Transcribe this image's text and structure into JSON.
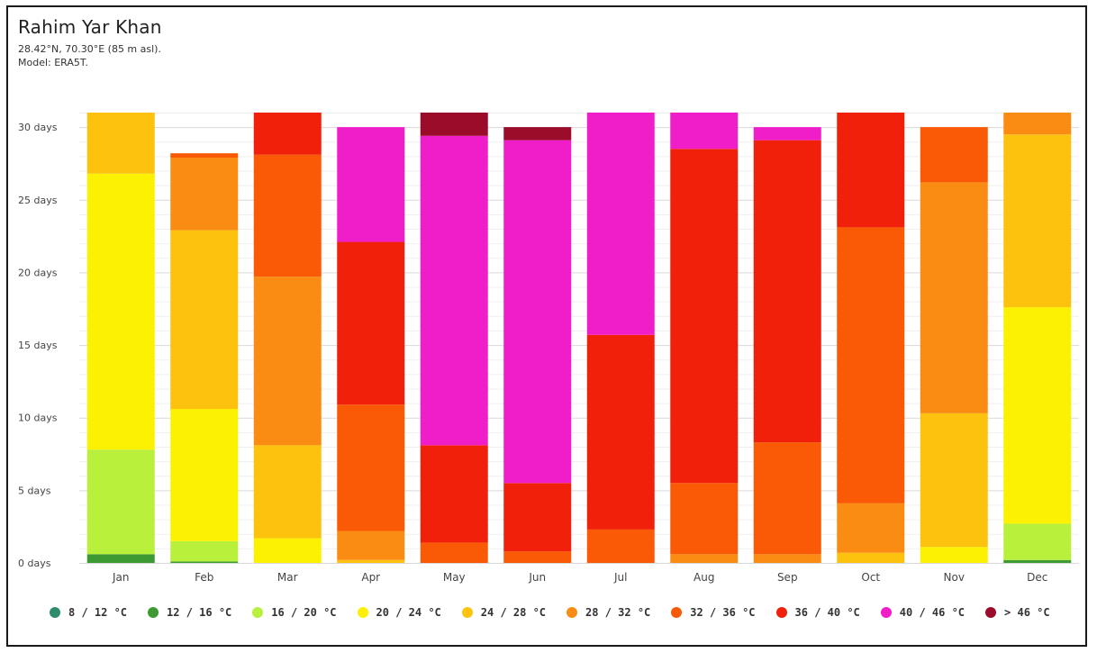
{
  "header": {
    "title": "Rahim Yar Khan",
    "coords": "28.42°N, 70.30°E (85 m asl).",
    "model": "Model: ERA5T."
  },
  "chart_data": {
    "type": "bar",
    "stacked": true,
    "categories": [
      "Jan",
      "Feb",
      "Mar",
      "Apr",
      "May",
      "Jun",
      "Jul",
      "Aug",
      "Sep",
      "Oct",
      "Nov",
      "Dec"
    ],
    "ylim": [
      0,
      31
    ],
    "yticks": [
      0,
      5,
      10,
      15,
      20,
      25,
      30
    ],
    "ytick_labels": [
      "0 days",
      "5 days",
      "10 days",
      "15 days",
      "20 days",
      "25 days",
      "30 days"
    ],
    "grid": true,
    "legend_position": "bottom",
    "series": [
      {
        "name": "8 / 12 °C",
        "color": "#2e8b6e",
        "values": [
          0,
          0,
          0,
          0,
          0,
          0,
          0,
          0,
          0,
          0,
          0,
          0
        ]
      },
      {
        "name": "12 / 16 °C",
        "color": "#3d9a32",
        "values": [
          0.6,
          0.1,
          0,
          0,
          0,
          0,
          0,
          0,
          0,
          0,
          0,
          0.2
        ]
      },
      {
        "name": "16 / 20 °C",
        "color": "#b8f03c",
        "values": [
          7.2,
          1.4,
          0,
          0,
          0,
          0,
          0,
          0,
          0,
          0,
          0,
          2.5
        ]
      },
      {
        "name": "20 / 24 °C",
        "color": "#fcf100",
        "values": [
          19.0,
          9.1,
          1.7,
          0,
          0,
          0,
          0,
          0,
          0,
          0,
          1.1,
          14.9
        ]
      },
      {
        "name": "24 / 28 °C",
        "color": "#fcc20e",
        "values": [
          4.2,
          12.3,
          6.4,
          0.2,
          0,
          0,
          0,
          0,
          0,
          0.7,
          9.2,
          11.9
        ]
      },
      {
        "name": "28 / 32 °C",
        "color": "#fa8c14",
        "values": [
          0,
          5.0,
          11.6,
          2.0,
          0,
          0,
          0,
          0.6,
          0.6,
          3.4,
          15.9,
          1.5
        ]
      },
      {
        "name": "32 / 36 °C",
        "color": "#fa5a05",
        "values": [
          0,
          0.3,
          8.4,
          8.7,
          1.4,
          0.8,
          2.3,
          4.9,
          7.7,
          19.0,
          3.8,
          0
        ]
      },
      {
        "name": "36 / 40 °C",
        "color": "#f0200a",
        "values": [
          0,
          0,
          2.9,
          11.2,
          6.7,
          4.7,
          13.4,
          23.0,
          20.8,
          7.9,
          0,
          0
        ]
      },
      {
        "name": "40 / 46 °C",
        "color": "#f01ec8",
        "values": [
          0,
          0,
          0,
          7.9,
          21.3,
          23.6,
          15.3,
          2.5,
          0.9,
          0,
          0,
          0
        ]
      },
      {
        "name": "> 46 °C",
        "color": "#9b0c2a",
        "values": [
          0,
          0,
          0,
          0,
          1.6,
          0.9,
          0,
          0,
          0,
          0,
          0,
          0
        ]
      }
    ]
  }
}
